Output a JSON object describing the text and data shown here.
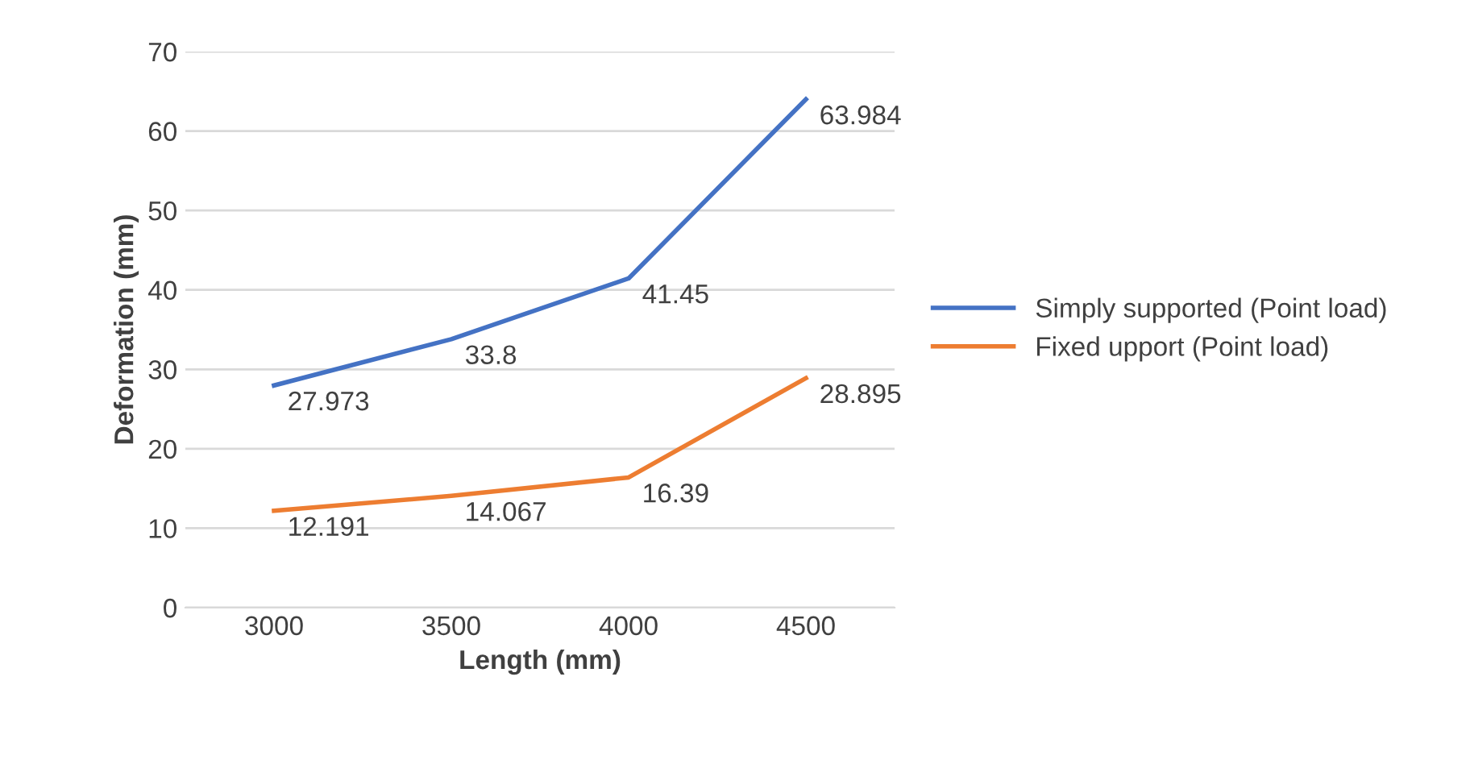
{
  "chart_data": {
    "type": "line",
    "xlabel": "Length (mm)",
    "ylabel": "Deformation (mm)",
    "categories": [
      "3000",
      "3500",
      "4000",
      "4500"
    ],
    "series": [
      {
        "name": "Simply supported (Point load)",
        "color": "#4472c4",
        "values": [
          27.973,
          33.8,
          41.45,
          63.984
        ]
      },
      {
        "name": "Fixed upport (Point load)",
        "color": "#ed7d31",
        "values": [
          12.191,
          14.067,
          16.39,
          28.895
        ]
      }
    ],
    "ylim": [
      0,
      70
    ],
    "yticks": [
      0,
      10,
      20,
      30,
      40,
      50,
      60,
      70
    ],
    "grid": "y",
    "legend": "right",
    "data_labels": true,
    "marker": "none",
    "line_style": "solid"
  }
}
